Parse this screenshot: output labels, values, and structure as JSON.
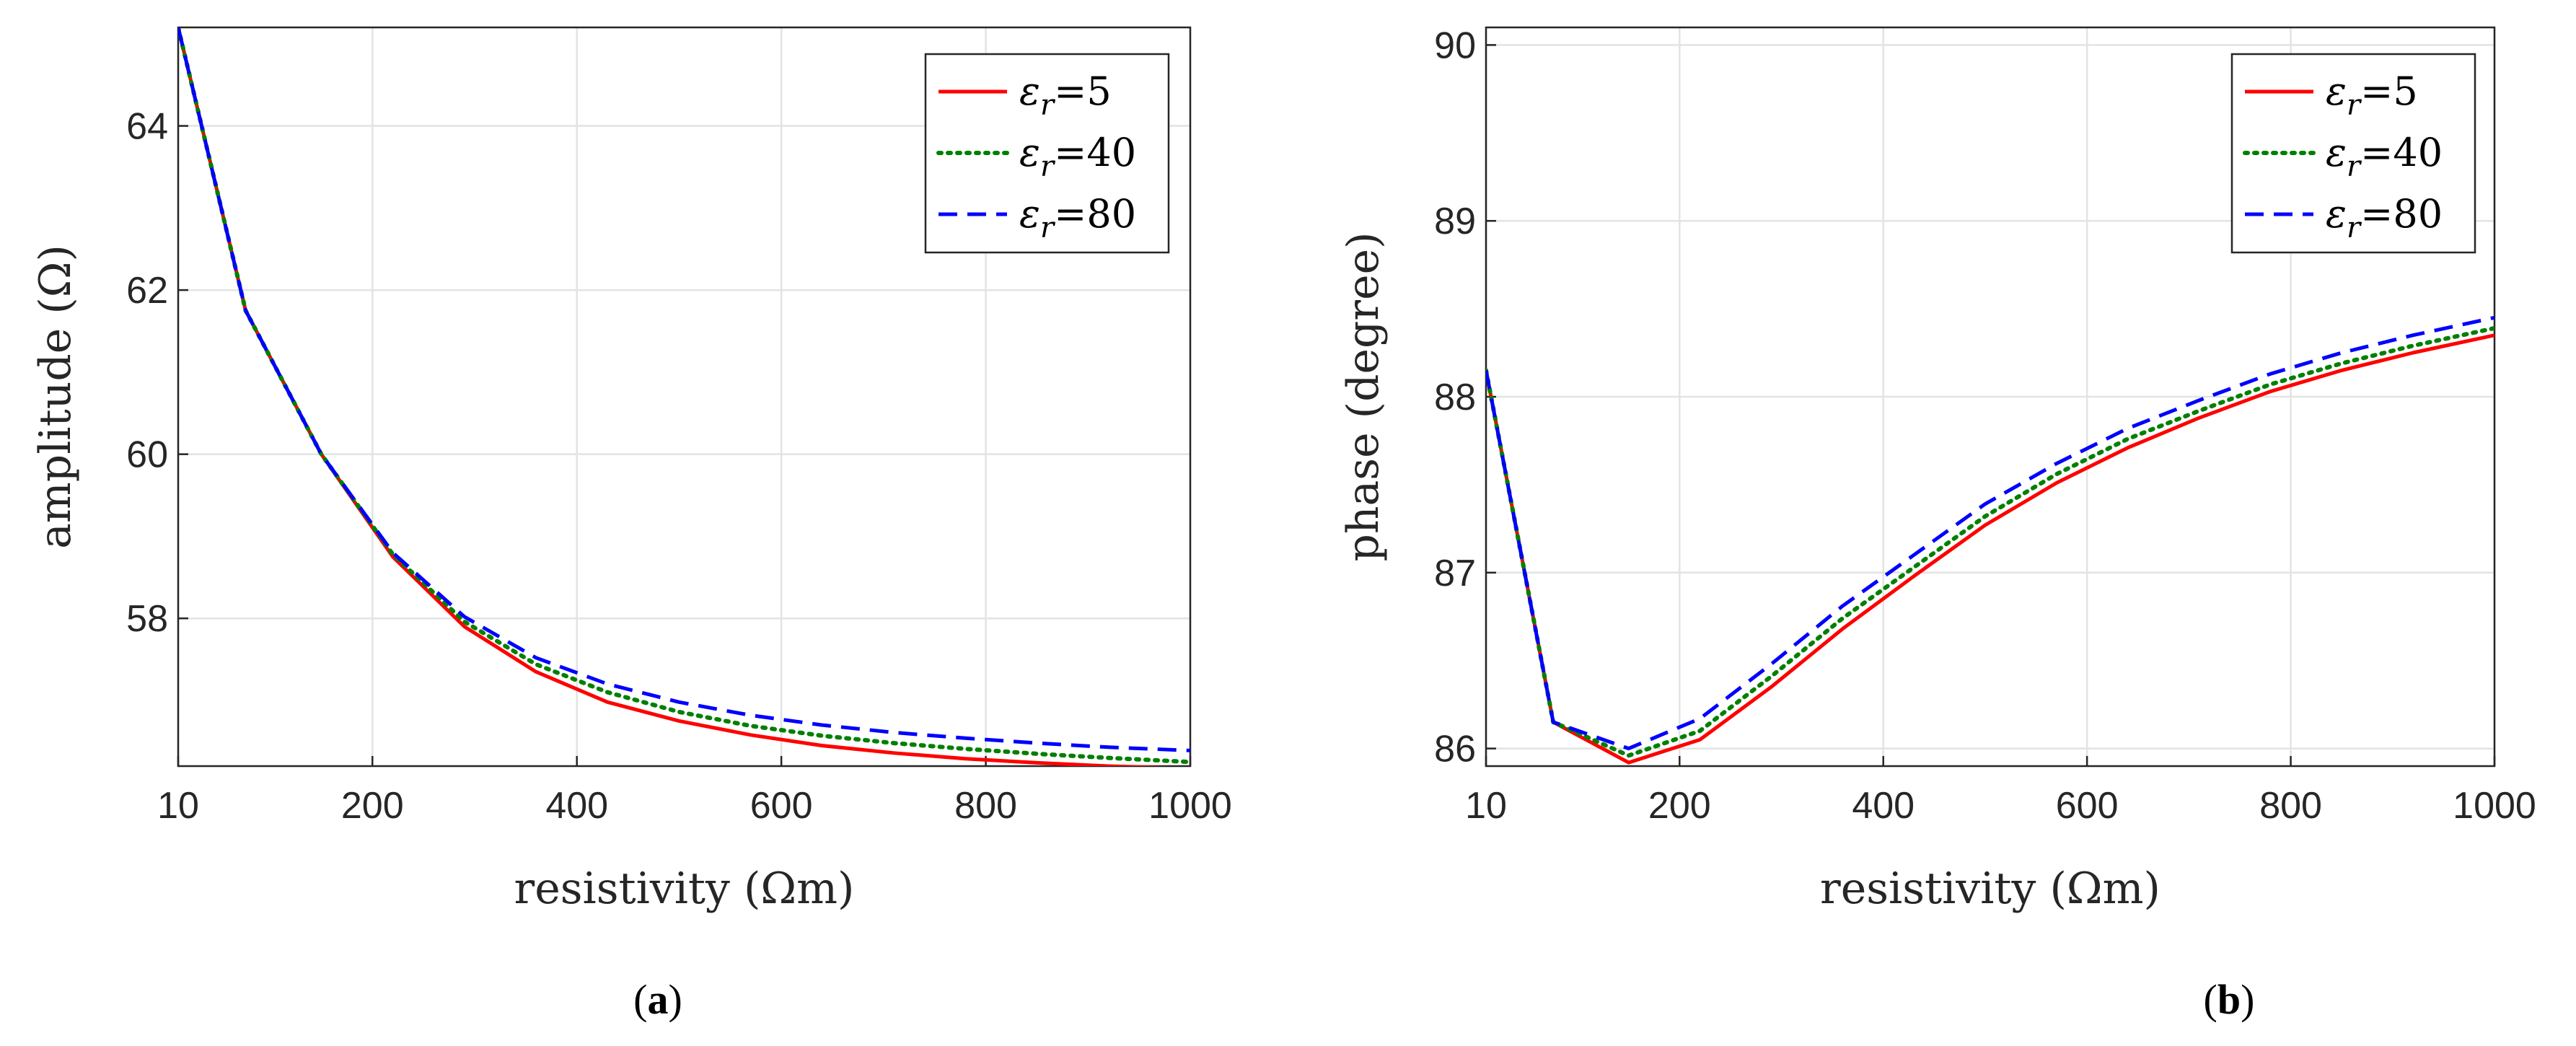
{
  "chart_data": [
    {
      "type": "line",
      "title": "",
      "xlabel": "resistivity (Ωm)",
      "ylabel": "amplitude (Ω)",
      "xlim": [
        10,
        1000
      ],
      "ylim": [
        56.2,
        65.2
      ],
      "xticks": [
        10,
        200,
        400,
        600,
        800,
        1000
      ],
      "yticks": [
        58,
        60,
        62,
        64
      ],
      "grid": true,
      "legend_position": "top-right",
      "subfigure_label": "(a)",
      "subfigure_letter": "a",
      "series": [
        {
          "name": "εr=5",
          "symbol": "ε",
          "sub": "r",
          "value_label": "=5",
          "color": "#ff0000",
          "style": "solid",
          "x": [
            10,
            76,
            150,
            220,
            290,
            360,
            430,
            500,
            570,
            640,
            710,
            780,
            850,
            920,
            1000
          ],
          "y": [
            65.2,
            61.75,
            60.0,
            58.75,
            57.9,
            57.35,
            56.98,
            56.75,
            56.58,
            56.45,
            56.36,
            56.29,
            56.24,
            56.2,
            56.17
          ]
        },
        {
          "name": "εr=40",
          "symbol": "ε",
          "sub": "r",
          "value_label": "=40",
          "color": "#008000",
          "style": "dotted",
          "x": [
            10,
            76,
            150,
            220,
            290,
            360,
            430,
            500,
            570,
            640,
            710,
            780,
            850,
            920,
            1000
          ],
          "y": [
            65.2,
            61.75,
            60.0,
            58.78,
            57.96,
            57.44,
            57.1,
            56.86,
            56.69,
            56.57,
            56.48,
            56.41,
            56.35,
            56.3,
            56.25
          ]
        },
        {
          "name": "εr=80",
          "symbol": "ε",
          "sub": "r",
          "value_label": "=80",
          "color": "#0000ff",
          "style": "dashed",
          "x": [
            10,
            76,
            150,
            220,
            290,
            360,
            430,
            500,
            570,
            640,
            710,
            780,
            850,
            920,
            1000
          ],
          "y": [
            65.2,
            61.75,
            60.0,
            58.8,
            58.02,
            57.52,
            57.2,
            56.98,
            56.82,
            56.7,
            56.61,
            56.54,
            56.48,
            56.43,
            56.39
          ]
        }
      ]
    },
    {
      "type": "line",
      "title": "",
      "xlabel": "resistivity (Ωm)",
      "ylabel": "phase (degree)",
      "xlim": [
        10,
        1000
      ],
      "ylim": [
        85.9,
        90.1
      ],
      "xticks": [
        10,
        200,
        400,
        600,
        800,
        1000
      ],
      "yticks": [
        86,
        87,
        88,
        89,
        90
      ],
      "grid": true,
      "legend_position": "top-right",
      "subfigure_label": "(b)",
      "subfigure_letter": "b",
      "series": [
        {
          "name": "εr=5",
          "symbol": "ε",
          "sub": "r",
          "value_label": "=5",
          "color": "#ff0000",
          "style": "solid",
          "x": [
            10,
            76,
            150,
            220,
            290,
            360,
            430,
            500,
            570,
            640,
            710,
            780,
            850,
            920,
            1000
          ],
          "y": [
            88.15,
            86.15,
            85.92,
            86.05,
            86.35,
            86.68,
            86.98,
            87.27,
            87.51,
            87.71,
            87.88,
            88.03,
            88.15,
            88.25,
            88.35
          ]
        },
        {
          "name": "εr=40",
          "symbol": "ε",
          "sub": "r",
          "value_label": "=40",
          "color": "#008000",
          "style": "dotted",
          "x": [
            10,
            76,
            150,
            220,
            290,
            360,
            430,
            500,
            570,
            640,
            710,
            780,
            850,
            920,
            1000
          ],
          "y": [
            88.15,
            86.15,
            85.96,
            86.1,
            86.41,
            86.74,
            87.03,
            87.32,
            87.56,
            87.76,
            87.92,
            88.07,
            88.19,
            88.29,
            88.39
          ]
        },
        {
          "name": "εr=80",
          "symbol": "ε",
          "sub": "r",
          "value_label": "=80",
          "color": "#0000ff",
          "style": "dashed",
          "x": [
            10,
            76,
            150,
            220,
            290,
            360,
            430,
            500,
            570,
            640,
            710,
            780,
            850,
            920,
            1000
          ],
          "y": [
            88.15,
            86.15,
            86.0,
            86.17,
            86.48,
            86.81,
            87.1,
            87.39,
            87.62,
            87.82,
            87.98,
            88.13,
            88.25,
            88.35,
            88.45
          ]
        }
      ]
    }
  ]
}
